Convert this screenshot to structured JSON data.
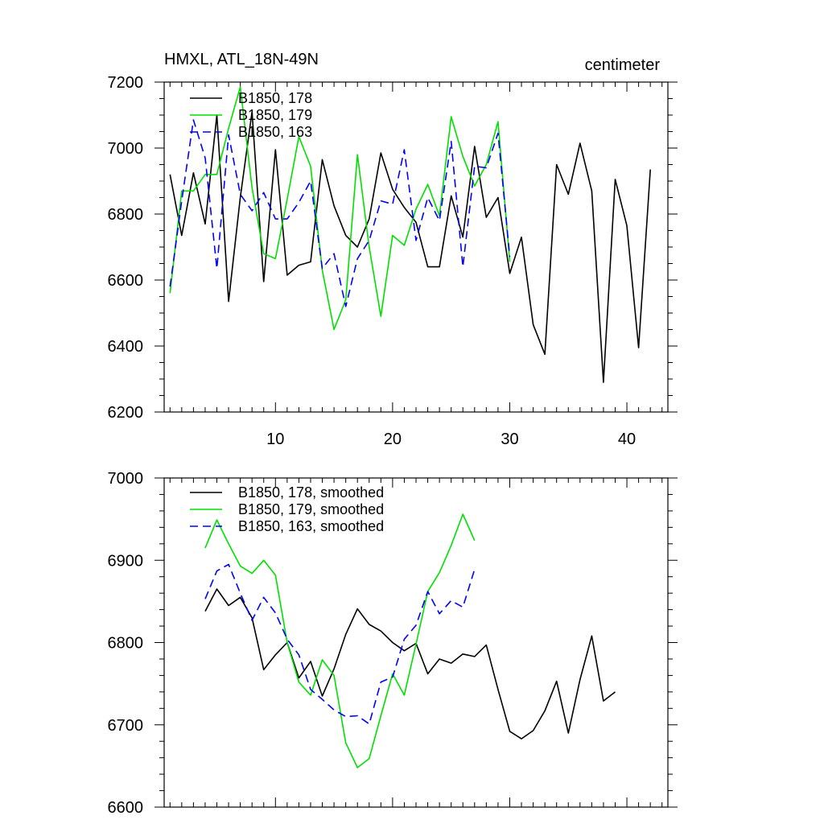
{
  "chart_data": [
    {
      "type": "line",
      "title": "HMXL, ATL_18N-49N",
      "units": "centimeter",
      "xlabel": "",
      "ylabel": "",
      "xlim": [
        0.5,
        43.5
      ],
      "ylim": [
        6200,
        7200
      ],
      "xticks": [
        10,
        20,
        30,
        40
      ],
      "yticks": [
        6200,
        6400,
        6600,
        6800,
        7000,
        7200
      ],
      "legend_position": "top-left",
      "series": [
        {
          "name": "B1850, 178",
          "color": "#000000",
          "dash": "solid",
          "x": [
            1,
            2,
            3,
            4,
            5,
            6,
            7,
            8,
            9,
            10,
            11,
            12,
            13,
            14,
            15,
            16,
            17,
            18,
            19,
            20,
            21,
            22,
            23,
            24,
            25,
            26,
            27,
            28,
            29,
            30,
            31,
            32,
            33,
            34,
            35,
            36,
            37,
            38,
            39,
            40,
            41,
            42
          ],
          "values": [
            6920,
            6735,
            6925,
            6770,
            7100,
            6535,
            6850,
            7110,
            6595,
            6995,
            6615,
            6645,
            6655,
            6965,
            6825,
            6735,
            6700,
            6785,
            6985,
            6875,
            6820,
            6775,
            6640,
            6640,
            6855,
            6730,
            7005,
            6790,
            6850,
            6620,
            6730,
            6465,
            6375,
            6950,
            6860,
            7015,
            6870,
            6290,
            6905,
            6765,
            6395,
            6935
          ]
        },
        {
          "name": "B1850, 179",
          "color": "#00e000",
          "dash": "solid",
          "x": [
            1,
            2,
            3,
            4,
            5,
            6,
            7,
            8,
            9,
            10,
            11,
            12,
            13,
            14,
            15,
            16,
            17,
            18,
            19,
            20,
            21,
            22,
            23,
            24,
            25,
            26,
            27,
            28,
            29,
            30
          ],
          "values": [
            6560,
            6870,
            6870,
            6920,
            6920,
            7060,
            7185,
            6880,
            6680,
            6665,
            6845,
            7035,
            6945,
            6630,
            6450,
            6540,
            6980,
            6700,
            6490,
            6735,
            6705,
            6815,
            6890,
            6795,
            7095,
            6975,
            6885,
            6950,
            7080,
            6655
          ]
        },
        {
          "name": "B1850, 163",
          "color": "#0000ff",
          "dash": "dashed",
          "x": [
            1,
            2,
            3,
            4,
            5,
            6,
            7,
            8,
            9,
            10,
            11,
            12,
            13,
            14,
            15,
            16,
            17,
            18,
            19,
            20,
            21,
            22,
            23,
            24,
            25,
            26,
            27,
            28,
            29,
            30
          ],
          "values": [
            6580,
            6840,
            7085,
            6970,
            6635,
            7040,
            6860,
            6810,
            6865,
            6785,
            6785,
            6835,
            6900,
            6635,
            6680,
            6520,
            6665,
            6720,
            6840,
            6830,
            6995,
            6720,
            6850,
            6780,
            7020,
            6640,
            6945,
            6940,
            7045,
            6670
          ]
        }
      ]
    },
    {
      "type": "line",
      "title": "",
      "xlabel": "",
      "ylabel": "",
      "xlim": [
        0.5,
        43.5
      ],
      "ylim": [
        6600,
        7000
      ],
      "xticks": [
        10,
        20,
        30,
        40
      ],
      "yticks": [
        6600,
        6700,
        6800,
        6900,
        7000
      ],
      "legend_position": "top-left",
      "series": [
        {
          "name": "B1850, 178, smoothed",
          "color": "#000000",
          "dash": "solid",
          "x": [
            4,
            5,
            6,
            7,
            8,
            9,
            10,
            11,
            12,
            13,
            14,
            15,
            16,
            17,
            18,
            19,
            20,
            21,
            22,
            23,
            24,
            25,
            26,
            27,
            28,
            29,
            30,
            31,
            32,
            33,
            34,
            35,
            36,
            37,
            38,
            39
          ],
          "values": [
            6838,
            6865,
            6845,
            6855,
            6830,
            6767,
            6785,
            6800,
            6757,
            6777,
            6735,
            6768,
            6810,
            6841,
            6822,
            6814,
            6800,
            6790,
            6799,
            6762,
            6780,
            6775,
            6786,
            6783,
            6797,
            6743,
            6692,
            6683,
            6693,
            6717,
            6753,
            6690,
            6755,
            6808,
            6729,
            6740
          ]
        },
        {
          "name": "B1850, 179, smoothed",
          "color": "#00e000",
          "dash": "solid",
          "x": [
            4,
            5,
            6,
            7,
            8,
            9,
            10,
            11,
            12,
            13,
            14,
            15,
            16,
            17,
            18,
            19,
            20,
            21,
            22,
            23,
            24,
            25,
            26,
            27
          ],
          "values": [
            6915,
            6949,
            6920,
            6893,
            6884,
            6900,
            6882,
            6800,
            6752,
            6736,
            6779,
            6760,
            6678,
            6648,
            6659,
            6711,
            6762,
            6736,
            6798,
            6862,
            6885,
            6918,
            6956,
            6924
          ]
        },
        {
          "name": "B1850, 163, smoothed",
          "color": "#0000ff",
          "dash": "dashed",
          "x": [
            4,
            5,
            6,
            7,
            8,
            9,
            10,
            11,
            12,
            13,
            14,
            15,
            16,
            17,
            18,
            19,
            20,
            21,
            22,
            23,
            24,
            25,
            26,
            27
          ],
          "values": [
            6853,
            6887,
            6895,
            6860,
            6827,
            6855,
            6836,
            6804,
            6785,
            6743,
            6731,
            6718,
            6710,
            6711,
            6701,
            6752,
            6758,
            6804,
            6821,
            6862,
            6835,
            6851,
            6843,
            6889
          ]
        }
      ]
    }
  ]
}
